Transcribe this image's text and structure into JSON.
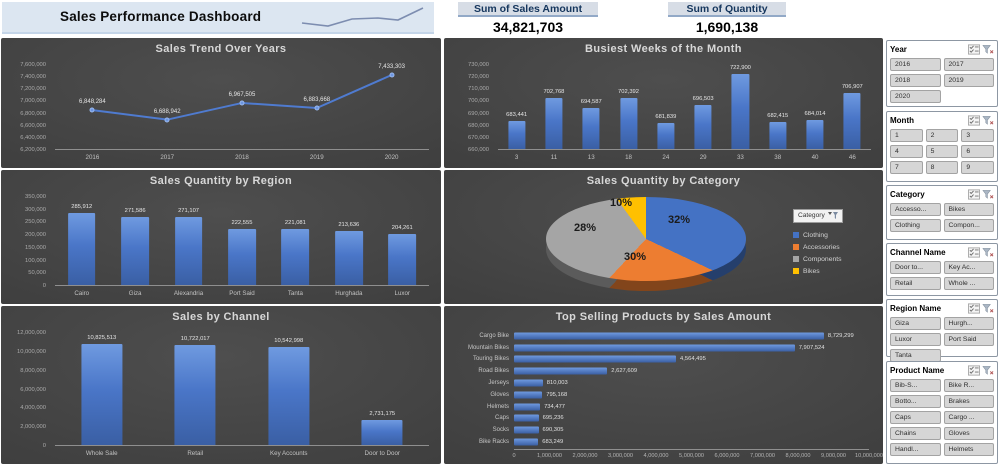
{
  "header": {
    "title": "Sales Performance Dashboard",
    "kpis": [
      {
        "label": "Sum of Sales Amount",
        "value": "34,821,703"
      },
      {
        "label": "Sum of Quantity",
        "value": "1,690,138"
      }
    ]
  },
  "colors": {
    "accent_blue": "#4472c4",
    "accent_orange": "#ed7d31",
    "accent_gray": "#a5a5a5",
    "accent_yellow": "#ffc000",
    "banner_bg": "#dce6f1",
    "panel_bg": "#3f3f3f"
  },
  "chart_data": [
    {
      "id": "trend",
      "type": "line",
      "title": "Sales Trend Over Years",
      "categories": [
        "2016",
        "2017",
        "2018",
        "2019",
        "2020"
      ],
      "values": [
        6848284,
        6688942,
        6967505,
        6883668,
        7433303
      ],
      "ylim": [
        6200000,
        7600000
      ],
      "ystep": 200000
    },
    {
      "id": "weeks",
      "type": "bar",
      "title": "Busiest Weeks of the Month",
      "categories": [
        "3",
        "11",
        "13",
        "18",
        "24",
        "29",
        "33",
        "38",
        "40",
        "46"
      ],
      "values": [
        683441,
        702768,
        694587,
        702392,
        681839,
        696503,
        722900,
        682415,
        684014,
        706907
      ],
      "ylim": [
        660000,
        730000
      ],
      "ystep": 10000
    },
    {
      "id": "region",
      "type": "bar",
      "title": "Sales Quantity by Region",
      "categories": [
        "Cairo",
        "Giza",
        "Alexandria",
        "Port Said",
        "Tanta",
        "Hurghada",
        "Luxor"
      ],
      "values": [
        285912,
        271586,
        271107,
        222555,
        221081,
        213636,
        204261
      ],
      "ylim": [
        0,
        350000
      ],
      "ystep": 50000
    },
    {
      "id": "category",
      "type": "pie",
      "title": "Sales Quantity by Category",
      "legend_button": "Category",
      "slices": [
        {
          "name": "Clothing",
          "pct": 32,
          "color": "#4472c4"
        },
        {
          "name": "Accessories",
          "pct": 30,
          "color": "#ed7d31"
        },
        {
          "name": "Components",
          "pct": 28,
          "color": "#a5a5a5"
        },
        {
          "name": "Bikes",
          "pct": 10,
          "color": "#ffc000"
        }
      ]
    },
    {
      "id": "channel",
      "type": "bar",
      "title": "Sales by Channel",
      "categories": [
        "Whole Sale",
        "Retail",
        "Key Accounts",
        "Door to Door"
      ],
      "values": [
        10825513,
        10722017,
        10542998,
        2731175
      ],
      "ylim": [
        0,
        12000000
      ],
      "ystep": 2000000
    },
    {
      "id": "products",
      "type": "hbar",
      "title": "Top Selling Products by Sales Amount",
      "categories": [
        "Cargo Bike",
        "Mountain Bikes",
        "Touring Bikes",
        "Road Bikes",
        "Jerseys",
        "Gloves",
        "Helmets",
        "Caps",
        "Socks",
        "Bike Racks"
      ],
      "values": [
        8729299,
        7907524,
        4564495,
        2627609,
        810003,
        795168,
        734477,
        695236,
        690305,
        683249
      ],
      "xlim": [
        0,
        10000000
      ],
      "xstep": 1000000
    }
  ],
  "slicers": [
    {
      "title": "Year",
      "columns": 2,
      "items": [
        "2016",
        "2017",
        "2018",
        "2019",
        "2020"
      ]
    },
    {
      "title": "Month",
      "columns": 3,
      "items": [
        "1",
        "2",
        "3",
        "4",
        "5",
        "6",
        "7",
        "8",
        "9"
      ]
    },
    {
      "title": "Category",
      "columns": 2,
      "items": [
        "Accesso...",
        "Bikes",
        "Clothing",
        "Compon..."
      ]
    },
    {
      "title": "Channel Name",
      "columns": 2,
      "items": [
        "Door to...",
        "Key Ac...",
        "Retail",
        "Whole ..."
      ]
    },
    {
      "title": "Region Name",
      "columns": 2,
      "items": [
        "Giza",
        "Hurgh...",
        "Luxor",
        "Port Said",
        "Tanta"
      ]
    },
    {
      "title": "Product Name",
      "columns": 2,
      "items": [
        "Bib-S...",
        "Bike R...",
        "Botto...",
        "Brakes",
        "Caps",
        "Cargo ...",
        "Chains",
        "Gloves",
        "Handl...",
        "Helmets"
      ]
    }
  ]
}
